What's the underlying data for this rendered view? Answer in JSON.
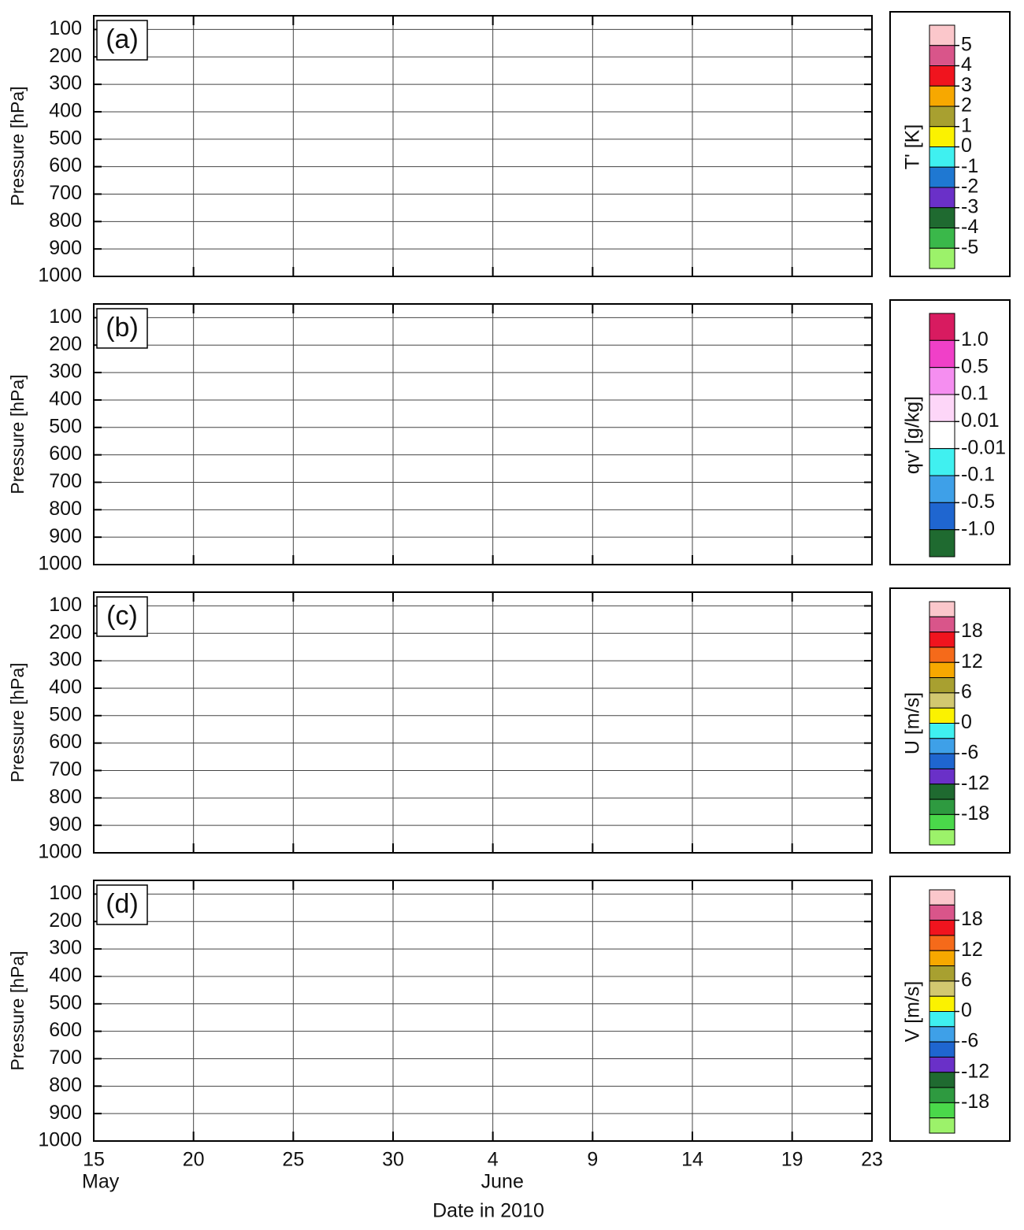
{
  "chart_data": [
    {
      "type": "contour",
      "panel_label": "(a)",
      "ylabel": "Pressure [hPa]",
      "ylim": [
        1000,
        50
      ],
      "yticks": [
        100,
        200,
        300,
        400,
        500,
        600,
        700,
        800,
        900,
        1000
      ],
      "xlim": [
        "2010-05-15",
        "2010-06-23"
      ],
      "xticks": [
        "2010-05-15",
        "2010-05-20",
        "2010-05-25",
        "2010-05-30",
        "2010-06-04",
        "2010-06-09",
        "2010-06-14",
        "2010-06-19",
        "2010-06-23"
      ],
      "grid": true,
      "colorbar": {
        "title": "T' [K]",
        "lim": [
          -6,
          6
        ],
        "ticks": [
          5,
          4,
          3,
          2,
          1,
          0,
          -1,
          -2,
          -3,
          -4,
          -5
        ],
        "colors": [
          "#fbc7cb",
          "#d9558a",
          "#f0141e",
          "#f7a800",
          "#a8a030",
          "#fbf200",
          "#3ff0f0",
          "#1f78d2",
          "#6a30c8",
          "#1f6a30",
          "#3ab84a",
          "#9cf26a"
        ]
      }
    },
    {
      "type": "contour",
      "panel_label": "(b)",
      "ylabel": "Pressure [hPa]",
      "ylim": [
        1000,
        50
      ],
      "yticks": [
        100,
        200,
        300,
        400,
        500,
        600,
        700,
        800,
        900,
        1000
      ],
      "xlim": [
        "2010-05-15",
        "2010-06-23"
      ],
      "xticks": [
        "2010-05-15",
        "2010-05-20",
        "2010-05-25",
        "2010-05-30",
        "2010-06-04",
        "2010-06-09",
        "2010-06-14",
        "2010-06-19",
        "2010-06-23"
      ],
      "grid": true,
      "colorbar": {
        "title": "qv' [g/kg]",
        "ticks": [
          {
            "value": 1,
            "label": "1.0"
          },
          0.5,
          0.1,
          0.01,
          -0.01,
          -0.1,
          -0.5,
          {
            "value": -1,
            "label": "-1.0"
          }
        ],
        "colors": [
          "#d81b60",
          "#f040c8",
          "#f58ef0",
          "#fdd6f8",
          "#ffffff",
          "#40f0f0",
          "#3ea0e8",
          "#1f66d0",
          "#1f6a30"
        ]
      }
    },
    {
      "type": "contour",
      "panel_label": "(c)",
      "ylabel": "Pressure [hPa]",
      "ylim": [
        1000,
        50
      ],
      "yticks": [
        100,
        200,
        300,
        400,
        500,
        600,
        700,
        800,
        900,
        1000
      ],
      "xlim": [
        "2010-05-15",
        "2010-06-23"
      ],
      "xticks": [
        "2010-05-15",
        "2010-05-20",
        "2010-05-25",
        "2010-05-30",
        "2010-06-04",
        "2010-06-09",
        "2010-06-14",
        "2010-06-19",
        "2010-06-23"
      ],
      "grid": true,
      "colorbar": {
        "title": "U [m/s]",
        "lim": [
          -24,
          24
        ],
        "ticks": [
          18,
          12,
          6,
          0,
          -6,
          -12,
          -18
        ],
        "colors": [
          "#fbc7cb",
          "#d9558a",
          "#f0141e",
          "#f56a1a",
          "#f7a800",
          "#a8a030",
          "#d2c870",
          "#fbf200",
          "#3ff0f0",
          "#3ea0e8",
          "#1f66d0",
          "#6a30c8",
          "#1f6a30",
          "#2e9a40",
          "#4ad84a",
          "#9cf26a"
        ]
      }
    },
    {
      "type": "contour",
      "panel_label": "(d)",
      "ylabel": "Pressure [hPa]",
      "ylim": [
        1000,
        50
      ],
      "yticks": [
        100,
        200,
        300,
        400,
        500,
        600,
        700,
        800,
        900,
        1000
      ],
      "xlim": [
        "2010-05-15",
        "2010-06-23"
      ],
      "xticks": [
        {
          "value": "2010-05-15",
          "label": "15"
        },
        {
          "value": "2010-05-20",
          "label": "20"
        },
        {
          "value": "2010-05-25",
          "label": "25"
        },
        {
          "value": "2010-05-30",
          "label": "30"
        },
        {
          "value": "2010-06-04",
          "label": "4"
        },
        {
          "value": "2010-06-09",
          "label": "9"
        },
        {
          "value": "2010-06-14",
          "label": "14"
        },
        {
          "value": "2010-06-19",
          "label": "19"
        },
        {
          "value": "2010-06-23",
          "label": "23"
        }
      ],
      "months": [
        {
          "value": "2010-05-15",
          "label": "May"
        },
        {
          "value": "2010-06-04",
          "label": "June"
        }
      ],
      "xlabel": "Date in 2010",
      "grid": true,
      "colorbar": {
        "title": "V [m/s]",
        "lim": [
          -24,
          24
        ],
        "ticks": [
          18,
          12,
          6,
          0,
          -6,
          -12,
          -18
        ],
        "colors": [
          "#fbc7cb",
          "#d9558a",
          "#f0141e",
          "#f56a1a",
          "#f7a800",
          "#a8a030",
          "#d2c870",
          "#fbf200",
          "#3ff0f0",
          "#3ea0e8",
          "#1f66d0",
          "#6a30c8",
          "#1f6a30",
          "#2e9a40",
          "#4ad84a",
          "#9cf26a"
        ]
      }
    }
  ]
}
